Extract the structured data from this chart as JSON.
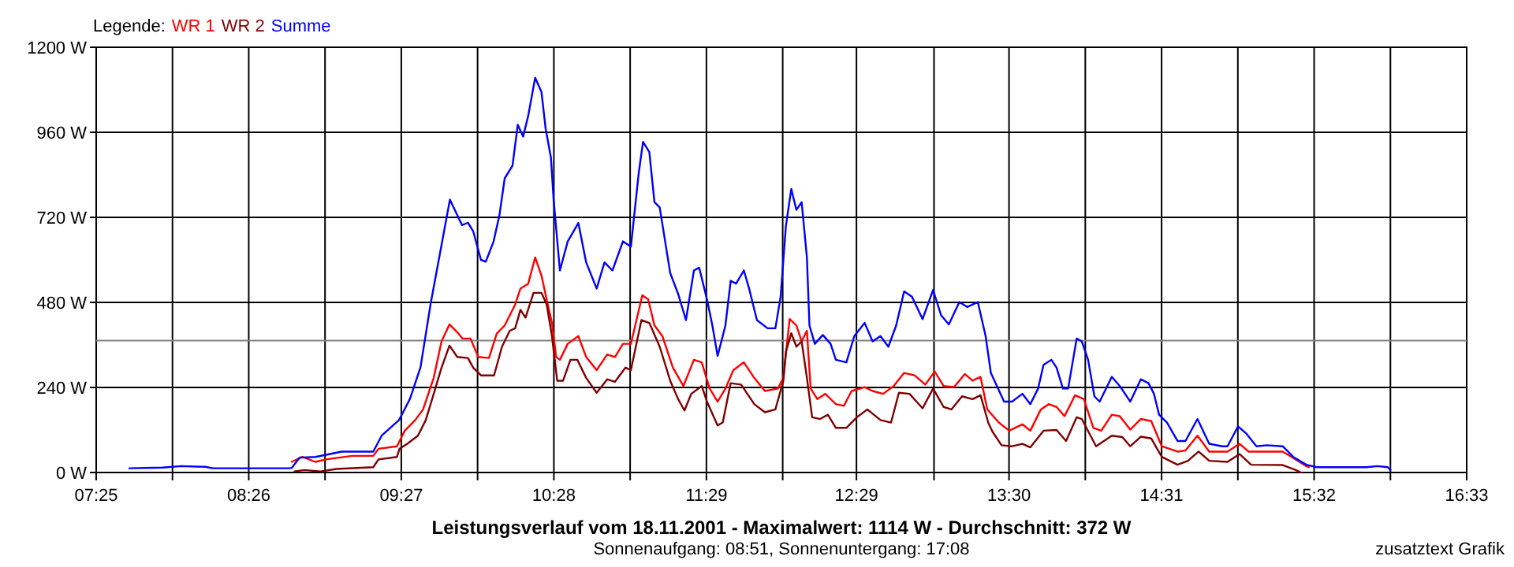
{
  "chart_data": {
    "type": "line",
    "title": "Leistungsverlauf vom 18.11.2001 - Maximalwert: 1114 W - Durchschnitt: 372 W",
    "subtitle": "Sonnenaufgang: 08:51, Sonnenuntergang: 17:08",
    "legend_title": "Legende:",
    "annotations": [
      "zusatztext Grafik"
    ],
    "legend": "top left",
    "grid": true,
    "xlim": [
      7.4167,
      16.55
    ],
    "xticks": [
      {
        "value": 7.4167,
        "label": "07:25"
      },
      {
        "value": 7.925,
        "label": null
      },
      {
        "value": 8.4333,
        "label": "08:26"
      },
      {
        "value": 8.9417,
        "label": null
      },
      {
        "value": 9.45,
        "label": "09:27"
      },
      {
        "value": 9.9583,
        "label": null
      },
      {
        "value": 10.4667,
        "label": "10:28"
      },
      {
        "value": 10.975,
        "label": null
      },
      {
        "value": 11.4833,
        "label": "11:29"
      },
      {
        "value": 11.9917,
        "label": null
      },
      {
        "value": 12.4833,
        "label": "12:29"
      },
      {
        "value": 13.0,
        "label": null
      },
      {
        "value": 13.5,
        "label": "13:30"
      },
      {
        "value": 14.0083,
        "label": null
      },
      {
        "value": 14.5167,
        "label": "14:31"
      },
      {
        "value": 15.025,
        "label": null
      },
      {
        "value": 15.5333,
        "label": "15:32"
      },
      {
        "value": 16.0417,
        "label": null
      },
      {
        "value": 16.55,
        "label": "16:33"
      }
    ],
    "ylim": [
      0,
      1200
    ],
    "yticks": [
      {
        "value": 0,
        "label": "0 W"
      },
      {
        "value": 240,
        "label": "240 W"
      },
      {
        "value": 480,
        "label": "480 W"
      },
      {
        "value": 720,
        "label": "720 W"
      },
      {
        "value": 960,
        "label": "960 W"
      },
      {
        "value": 1200,
        "label": "1200 W"
      }
    ],
    "ref_lines": [
      {
        "axis": "y",
        "value": 372,
        "color": "#808080"
      }
    ],
    "series": [
      {
        "name": "WR 1",
        "color": "#ff0000",
        "x": [
          8.72,
          8.79,
          8.878,
          8.948,
          9.122,
          9.263,
          9.298,
          9.421,
          9.473,
          9.543,
          9.595,
          9.666,
          9.718,
          9.771,
          9.823,
          9.858,
          9.911,
          9.963,
          10.034,
          10.086,
          10.139,
          10.209,
          10.244,
          10.296,
          10.342,
          10.384,
          10.426,
          10.454,
          10.482,
          10.507,
          10.559,
          10.63,
          10.682,
          10.752,
          10.822,
          10.874,
          10.927,
          10.98,
          11.056,
          11.095,
          11.137,
          11.19,
          11.26,
          11.33,
          11.4,
          11.452,
          11.505,
          11.558,
          11.61,
          11.663,
          11.733,
          11.802,
          11.873,
          11.96,
          11.996,
          12.038,
          12.083,
          12.118,
          12.153,
          12.178,
          12.223,
          12.276,
          12.346,
          12.399,
          12.451,
          12.538,
          12.591,
          12.661,
          12.731,
          12.801,
          12.871,
          12.942,
          13.005,
          13.064,
          13.134,
          13.205,
          13.257,
          13.31,
          13.355,
          13.432,
          13.501,
          13.589,
          13.642,
          13.712,
          13.764,
          13.817,
          13.87,
          13.94,
          13.999,
          14.062,
          14.115,
          14.185,
          14.238,
          14.308,
          14.378,
          14.448,
          14.518,
          14.623,
          14.676,
          14.756,
          14.834,
          14.956,
          15.037,
          15.096,
          15.324,
          15.394,
          15.481,
          15.499
        ],
        "values": [
          30,
          44,
          30,
          37,
          47,
          47,
          67,
          74,
          118,
          148,
          178,
          267,
          370,
          418,
          396,
          378,
          378,
          326,
          323,
          392,
          415,
          474,
          519,
          533,
          607,
          556,
          474,
          422,
          326,
          318,
          363,
          385,
          326,
          289,
          333,
          326,
          363,
          363,
          500,
          489,
          415,
          385,
          296,
          244,
          318,
          311,
          237,
          200,
          237,
          289,
          311,
          267,
          230,
          237,
          267,
          433,
          415,
          370,
          400,
          237,
          207,
          222,
          193,
          188,
          230,
          241,
          230,
          222,
          244,
          281,
          274,
          248,
          285,
          244,
          241,
          278,
          259,
          270,
          178,
          141,
          118,
          136,
          118,
          178,
          193,
          185,
          159,
          218,
          207,
          126,
          118,
          163,
          159,
          121,
          151,
          145,
          74,
          59,
          62,
          104,
          59,
          59,
          81,
          59,
          59,
          41,
          18,
          15
        ]
      },
      {
        "name": "WR 2",
        "color": "#800000",
        "x": [
          8.738,
          8.804,
          8.912,
          9.017,
          9.263,
          9.298,
          9.421,
          9.438,
          9.49,
          9.561,
          9.613,
          9.666,
          9.718,
          9.771,
          9.823,
          9.894,
          9.929,
          9.981,
          10.068,
          10.121,
          10.173,
          10.209,
          10.244,
          10.278,
          10.331,
          10.384,
          10.419,
          10.454,
          10.489,
          10.528,
          10.577,
          10.623,
          10.682,
          10.752,
          10.822,
          10.874,
          10.944,
          10.98,
          11.05,
          11.103,
          11.172,
          11.242,
          11.295,
          11.337,
          11.382,
          11.452,
          11.487,
          11.558,
          11.592,
          11.645,
          11.715,
          11.802,
          11.873,
          11.943,
          11.996,
          12.013,
          12.049,
          12.083,
          12.118,
          12.153,
          12.188,
          12.241,
          12.293,
          12.346,
          12.416,
          12.486,
          12.556,
          12.643,
          12.714,
          12.766,
          12.837,
          12.924,
          12.994,
          13.064,
          13.116,
          13.187,
          13.257,
          13.31,
          13.362,
          13.39,
          13.45,
          13.52,
          13.589,
          13.642,
          13.73,
          13.817,
          13.88,
          13.951,
          13.985,
          14.08,
          14.185,
          14.255,
          14.308,
          14.378,
          14.448,
          14.518,
          14.623,
          14.693,
          14.763,
          14.834,
          14.956,
          15.037,
          15.113,
          15.324,
          15.411,
          15.446
        ],
        "values": [
          3,
          7,
          3,
          10,
          15,
          37,
          44,
          67,
          81,
          104,
          148,
          222,
          296,
          358,
          326,
          323,
          296,
          274,
          274,
          355,
          400,
          407,
          459,
          437,
          507,
          507,
          474,
          385,
          259,
          259,
          318,
          318,
          267,
          225,
          263,
          256,
          296,
          289,
          430,
          422,
          355,
          259,
          207,
          175,
          222,
          244,
          200,
          133,
          141,
          252,
          248,
          193,
          170,
          178,
          259,
          341,
          393,
          355,
          370,
          267,
          156,
          151,
          163,
          126,
          126,
          156,
          178,
          148,
          141,
          225,
          222,
          181,
          237,
          185,
          178,
          215,
          207,
          218,
          140,
          115,
          77,
          74,
          81,
          71,
          118,
          120,
          89,
          156,
          151,
          74,
          104,
          100,
          74,
          101,
          96,
          44,
          22,
          33,
          59,
          33,
          30,
          52,
          22,
          21,
          7,
          0
        ]
      },
      {
        "name": "Summe",
        "color": "#0000ff",
        "x": [
          7.638,
          7.858,
          7.984,
          8.142,
          8.194,
          8.699,
          8.72,
          8.772,
          8.878,
          9.053,
          9.263,
          9.319,
          9.435,
          9.508,
          9.578,
          9.645,
          9.774,
          9.855,
          9.894,
          9.929,
          9.981,
          10.013,
          10.065,
          10.104,
          10.139,
          10.191,
          10.226,
          10.262,
          10.296,
          10.342,
          10.384,
          10.412,
          10.447,
          10.465,
          10.507,
          10.559,
          10.63,
          10.682,
          10.752,
          10.804,
          10.857,
          10.927,
          10.98,
          11.032,
          11.061,
          11.103,
          11.137,
          11.172,
          11.242,
          11.295,
          11.347,
          11.4,
          11.435,
          11.487,
          11.523,
          11.558,
          11.61,
          11.645,
          11.681,
          11.733,
          11.768,
          11.82,
          11.891,
          11.943,
          11.978,
          12.013,
          12.049,
          12.083,
          12.118,
          12.153,
          12.17,
          12.206,
          12.259,
          12.311,
          12.346,
          12.416,
          12.469,
          12.538,
          12.591,
          12.643,
          12.696,
          12.748,
          12.801,
          12.853,
          12.924,
          12.994,
          13.047,
          13.099,
          13.169,
          13.221,
          13.292,
          13.344,
          13.379,
          13.467,
          13.52,
          13.589,
          13.642,
          13.694,
          13.73,
          13.782,
          13.817,
          13.859,
          13.894,
          13.951,
          13.985,
          14.027,
          14.069,
          14.104,
          14.185,
          14.238,
          14.308,
          14.378,
          14.43,
          14.466,
          14.5,
          14.553,
          14.623,
          14.676,
          14.756,
          14.834,
          14.921,
          14.956,
          15.026,
          15.079,
          15.149,
          15.218,
          15.324,
          15.394,
          15.481,
          15.551,
          15.885,
          15.954,
          16.024,
          16.042
        ],
        "values": [
          12,
          14,
          18,
          16,
          12,
          12,
          13,
          42,
          44,
          59,
          59,
          104,
          148,
          208,
          297,
          475,
          770,
          698,
          705,
          681,
          600,
          595,
          652,
          726,
          830,
          866,
          981,
          948,
          1007,
          1114,
          1074,
          970,
          889,
          770,
          570,
          652,
          704,
          593,
          519,
          593,
          570,
          652,
          637,
          844,
          933,
          904,
          763,
          748,
          563,
          504,
          430,
          570,
          578,
          489,
          415,
          329,
          415,
          541,
          533,
          570,
          519,
          430,
          407,
          407,
          496,
          696,
          800,
          741,
          763,
          607,
          415,
          363,
          388,
          363,
          318,
          311,
          385,
          422,
          370,
          385,
          355,
          415,
          511,
          496,
          433,
          515,
          444,
          418,
          481,
          467,
          481,
          385,
          281,
          200,
          200,
          222,
          193,
          237,
          304,
          318,
          296,
          237,
          237,
          378,
          370,
          318,
          215,
          200,
          270,
          244,
          200,
          263,
          252,
          222,
          163,
          141,
          89,
          89,
          151,
          81,
          74,
          74,
          130,
          111,
          74,
          77,
          74,
          44,
          22,
          15,
          15,
          18,
          15,
          7
        ]
      }
    ]
  }
}
